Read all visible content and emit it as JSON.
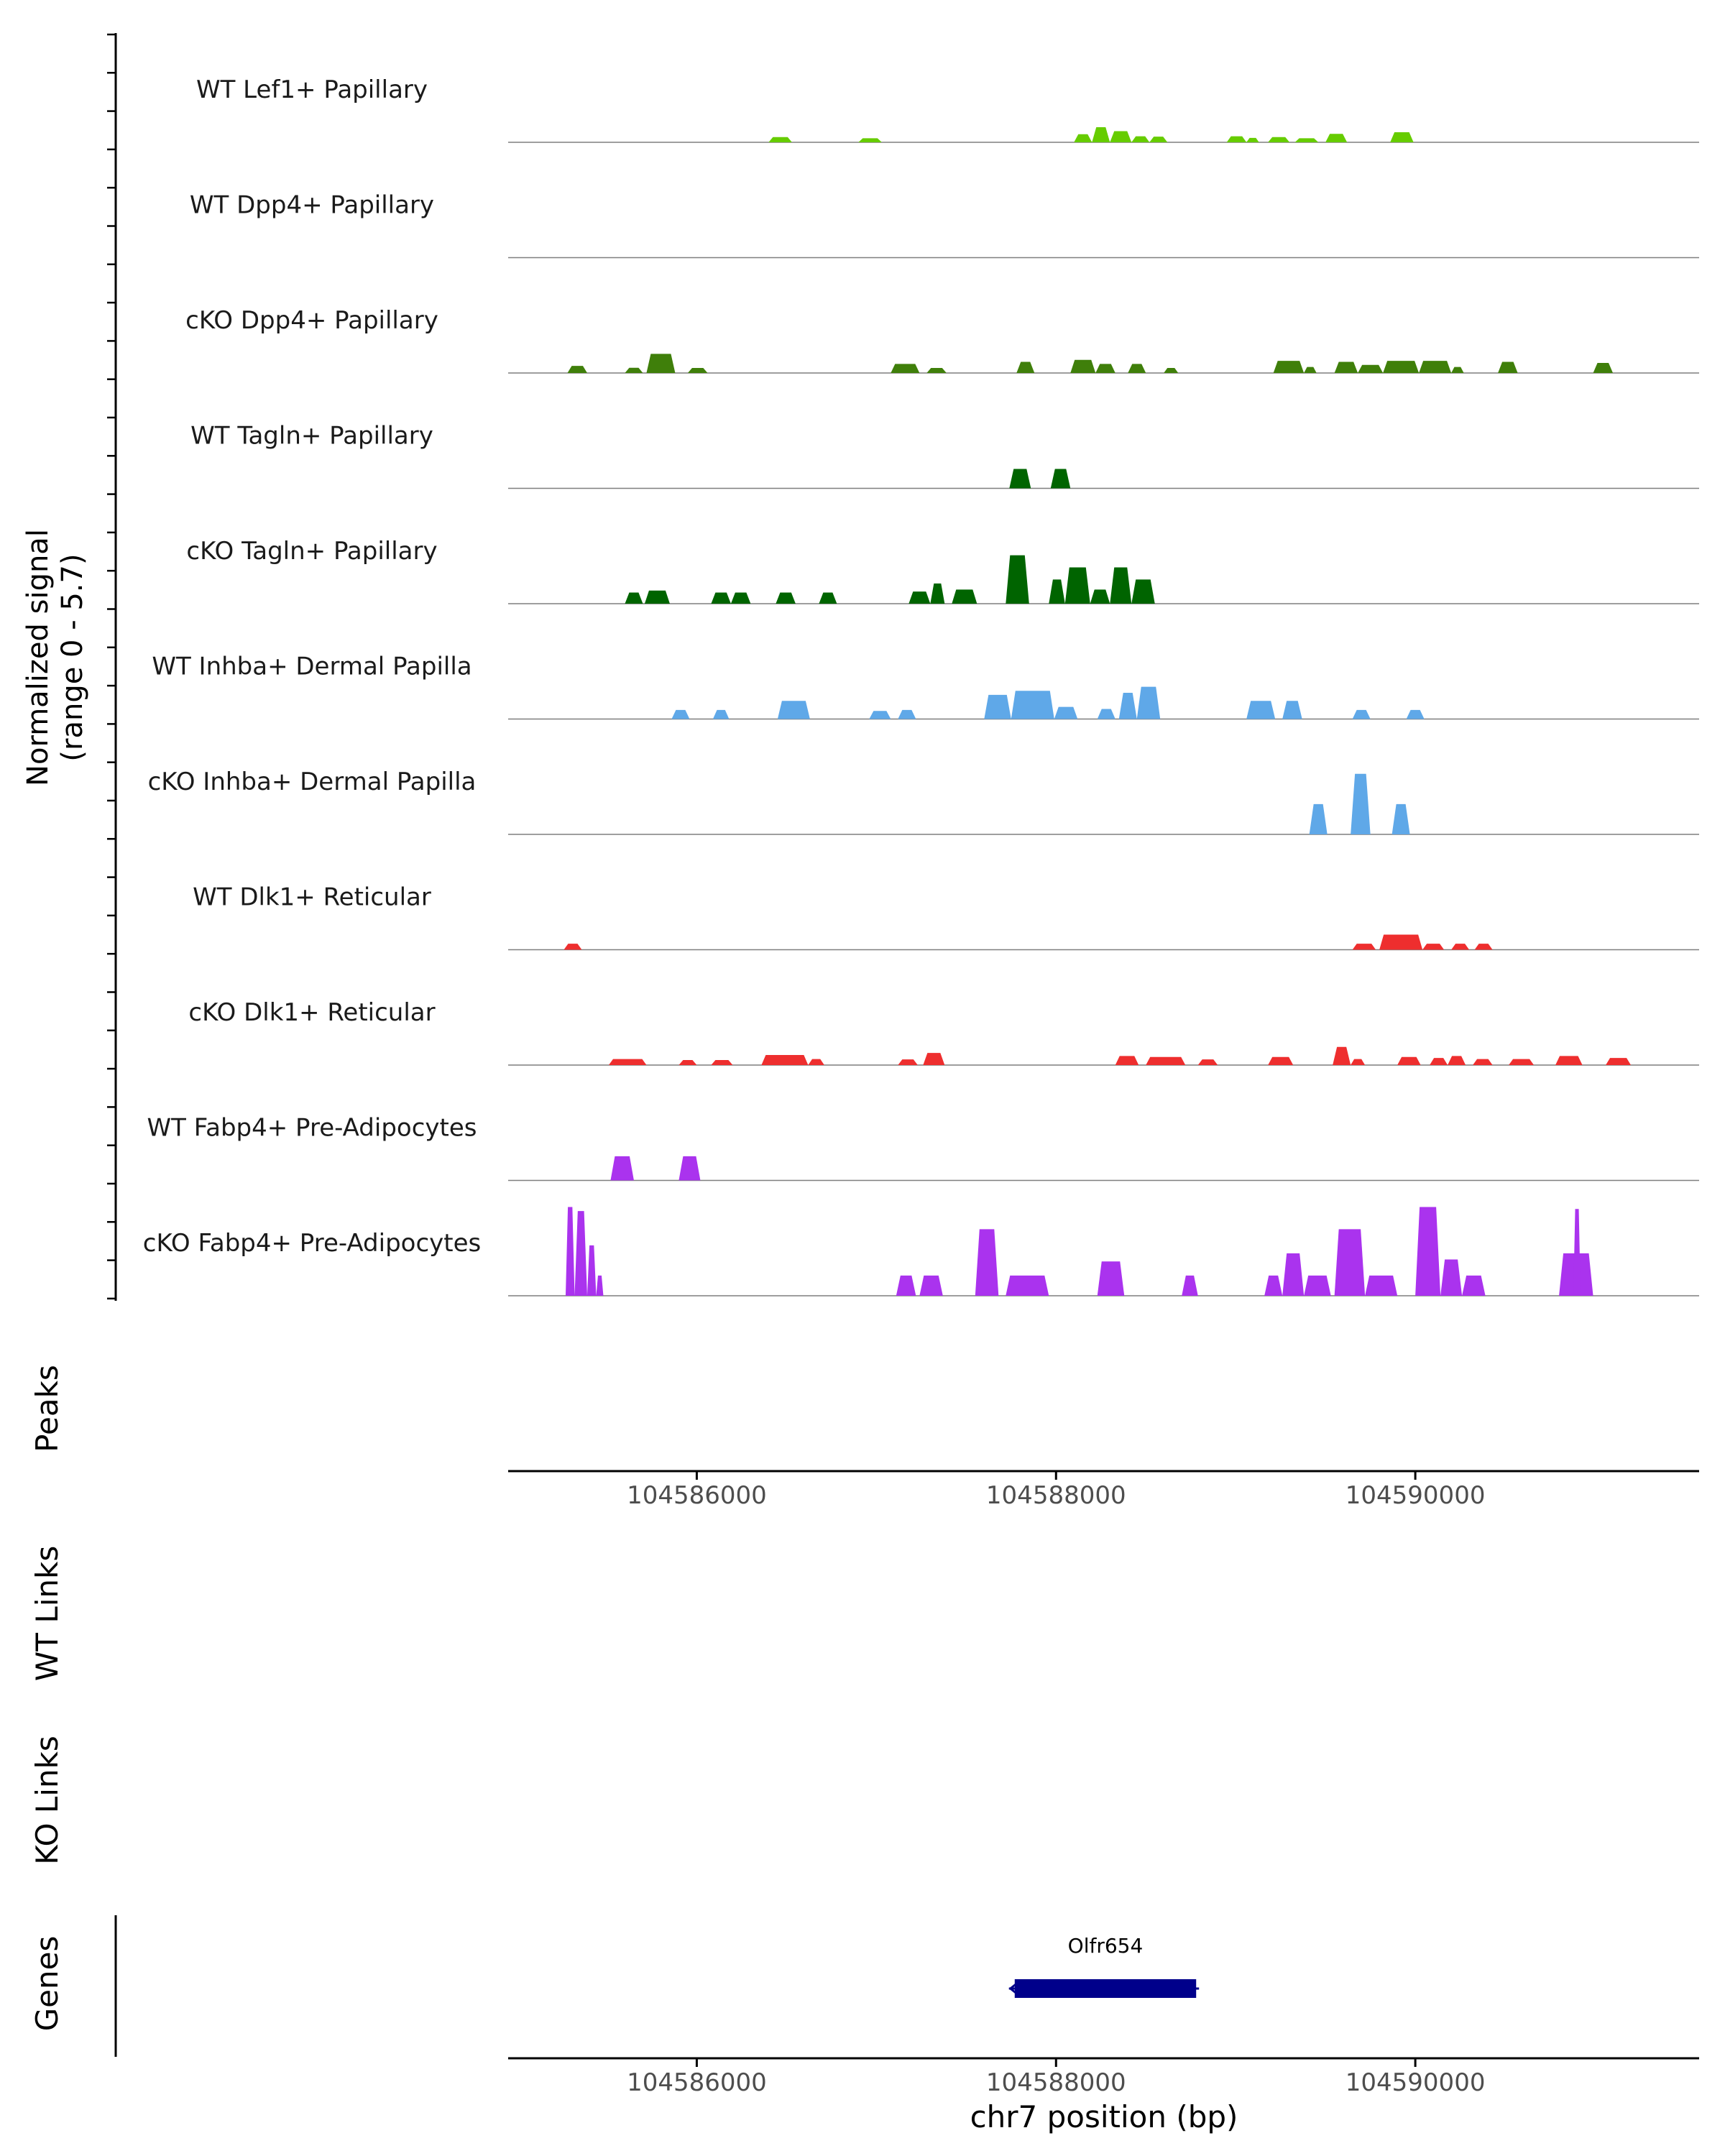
{
  "chart_data": {
    "type": "area",
    "colors": {
      "Lef1": "#66CC00",
      "PapillaryLight": "#3F7F0A",
      "PapillaryDark": "#006400",
      "Inhba": "#5FA8E8",
      "Dlk1": "#EE2E2E",
      "Fabp4": "#AA33EE",
      "Gene": "#00008B",
      "Baseline": "#7f7f7f",
      "Axis": "#000000",
      "Tick": "#4D4D4D"
    },
    "ylabel_signal": [
      "Normalized signal",
      "(range 0 - 5.7)"
    ],
    "y_range": [
      0,
      5.7
    ],
    "xlim": [
      104584950,
      104591580
    ],
    "x_ticks": [
      104586000,
      104588000,
      104590000
    ],
    "x_tick_labels": [
      "104586000",
      "104588000",
      "104590000"
    ],
    "xlabel": "chr7 position (bp)",
    "panel_labels": {
      "peaks": "Peaks",
      "wt_links": "WT Links",
      "ko_links": "KO Links",
      "genes": "Genes"
    },
    "genes": [
      {
        "name": "Olfr654",
        "start": 104587770,
        "end": 104588780,
        "strand": "-"
      }
    ],
    "tracks": [
      {
        "name": "WT Lef1+ Papillary",
        "color": "Lef1",
        "peaks": [
          [
            104586400,
            104586530,
            0.26
          ],
          [
            104586900,
            104587030,
            0.2
          ],
          [
            104588100,
            104588200,
            0.4
          ],
          [
            104588200,
            104588300,
            0.75
          ],
          [
            104588300,
            104588420,
            0.55
          ],
          [
            104588420,
            104588520,
            0.3
          ],
          [
            104588520,
            104588620,
            0.28
          ],
          [
            104588950,
            104589060,
            0.3
          ],
          [
            104589060,
            104589130,
            0.22
          ],
          [
            104589180,
            104589300,
            0.26
          ],
          [
            104589330,
            104589460,
            0.2
          ],
          [
            104589500,
            104589620,
            0.42
          ],
          [
            104589860,
            104589990,
            0.5
          ]
        ]
      },
      {
        "name": "WT Dpp4+ Papillary",
        "color": "Lef1",
        "peaks": []
      },
      {
        "name": "cKO Dpp4+ Papillary",
        "color": "PapillaryLight",
        "peaks": [
          [
            104585280,
            104585390,
            0.35
          ],
          [
            104585600,
            104585700,
            0.26
          ],
          [
            104585720,
            104585880,
            0.95
          ],
          [
            104585950,
            104586060,
            0.25
          ],
          [
            104587080,
            104587240,
            0.45
          ],
          [
            104587280,
            104587390,
            0.25
          ],
          [
            104587780,
            104587880,
            0.55
          ],
          [
            104588080,
            104588220,
            0.65
          ],
          [
            104588220,
            104588330,
            0.45
          ],
          [
            104588400,
            104588500,
            0.45
          ],
          [
            104588600,
            104588680,
            0.25
          ],
          [
            104589210,
            104589380,
            0.6
          ],
          [
            104589380,
            104589450,
            0.3
          ],
          [
            104589550,
            104589680,
            0.55
          ],
          [
            104589680,
            104589820,
            0.4
          ],
          [
            104589820,
            104590020,
            0.6
          ],
          [
            104590020,
            104590200,
            0.6
          ],
          [
            104590200,
            104590270,
            0.3
          ],
          [
            104590460,
            104590570,
            0.55
          ],
          [
            104590990,
            104591100,
            0.5
          ]
        ]
      },
      {
        "name": "WT Tagln+ Papillary",
        "color": "PapillaryDark",
        "peaks": [
          [
            104587740,
            104587860,
            0.96
          ],
          [
            104587970,
            104588080,
            0.96
          ]
        ]
      },
      {
        "name": "cKO Tagln+ Papillary",
        "color": "PapillaryDark",
        "peaks": [
          [
            104585600,
            104585700,
            0.55
          ],
          [
            104585710,
            104585850,
            0.65
          ],
          [
            104586080,
            104586190,
            0.55
          ],
          [
            104586190,
            104586300,
            0.55
          ],
          [
            104586440,
            104586550,
            0.55
          ],
          [
            104586680,
            104586780,
            0.55
          ],
          [
            104587180,
            104587300,
            0.6
          ],
          [
            104587300,
            104587380,
            1.0
          ],
          [
            104587420,
            104587560,
            0.7
          ],
          [
            104587720,
            104587850,
            2.4
          ],
          [
            104587960,
            104588050,
            1.2
          ],
          [
            104588050,
            104588190,
            1.8
          ],
          [
            104588190,
            104588300,
            0.7
          ],
          [
            104588300,
            104588420,
            1.8
          ],
          [
            104588420,
            104588550,
            1.2
          ]
        ]
      },
      {
        "name": "WT Inhba+ Dermal Papilla",
        "color": "Inhba",
        "peaks": [
          [
            104585860,
            104585960,
            0.45
          ],
          [
            104586090,
            104586180,
            0.45
          ],
          [
            104586450,
            104586630,
            0.9
          ],
          [
            104586960,
            104587080,
            0.4
          ],
          [
            104587120,
            104587220,
            0.45
          ],
          [
            104587600,
            104587750,
            1.2
          ],
          [
            104587750,
            104587990,
            1.4
          ],
          [
            104587990,
            104588120,
            0.6
          ],
          [
            104588230,
            104588330,
            0.5
          ],
          [
            104588350,
            104588450,
            1.3
          ],
          [
            104588450,
            104588580,
            1.6
          ],
          [
            104589060,
            104589220,
            0.9
          ],
          [
            104589260,
            104589370,
            0.9
          ],
          [
            104589650,
            104589750,
            0.45
          ],
          [
            104589950,
            104590050,
            0.45
          ]
        ]
      },
      {
        "name": "cKO Inhba+ Dermal Papilla",
        "color": "Inhba",
        "peaks": [
          [
            104589410,
            104589510,
            1.5
          ],
          [
            104589640,
            104589750,
            3.0
          ],
          [
            104589870,
            104589970,
            1.5
          ]
        ]
      },
      {
        "name": "WT Dlk1+ Reticular",
        "color": "Dlk1",
        "peaks": [
          [
            104585260,
            104585360,
            0.3
          ],
          [
            104589650,
            104589780,
            0.3
          ],
          [
            104589800,
            104590040,
            0.75
          ],
          [
            104590040,
            104590160,
            0.3
          ],
          [
            104590200,
            104590300,
            0.3
          ],
          [
            104590330,
            104590430,
            0.3
          ]
        ]
      },
      {
        "name": "cKO Dlk1+ Reticular",
        "color": "Dlk1",
        "peaks": [
          [
            104585510,
            104585720,
            0.3
          ],
          [
            104585900,
            104586000,
            0.25
          ],
          [
            104586080,
            104586200,
            0.25
          ],
          [
            104586360,
            104586620,
            0.5
          ],
          [
            104586620,
            104586710,
            0.3
          ],
          [
            104587120,
            104587230,
            0.28
          ],
          [
            104587260,
            104587380,
            0.6
          ],
          [
            104588330,
            104588460,
            0.45
          ],
          [
            104588500,
            104588720,
            0.4
          ],
          [
            104588790,
            104588900,
            0.28
          ],
          [
            104589180,
            104589320,
            0.4
          ],
          [
            104589540,
            104589640,
            0.9
          ],
          [
            104589640,
            104589720,
            0.3
          ],
          [
            104589900,
            104590030,
            0.4
          ],
          [
            104590080,
            104590180,
            0.35
          ],
          [
            104590180,
            104590280,
            0.45
          ],
          [
            104590320,
            104590430,
            0.3
          ],
          [
            104590520,
            104590660,
            0.3
          ],
          [
            104590780,
            104590930,
            0.45
          ],
          [
            104591060,
            104591200,
            0.35
          ]
        ]
      },
      {
        "name": "WT Fabp4+ Pre-Adipocytes",
        "color": "Fabp4",
        "peaks": [
          [
            104585520,
            104585650,
            1.2
          ],
          [
            104585900,
            104586020,
            1.2
          ]
        ]
      },
      {
        "name": "cKO Fabp4+ Pre-Adipocytes",
        "color": "Fabp4",
        "peaks": [
          [
            104585270,
            104585320,
            4.4
          ],
          [
            104585320,
            104585390,
            4.2
          ],
          [
            104585390,
            104585440,
            2.5
          ],
          [
            104585440,
            104585480,
            1.0
          ],
          [
            104587110,
            104587220,
            1.0
          ],
          [
            104587240,
            104587370,
            1.0
          ],
          [
            104587550,
            104587680,
            3.3
          ],
          [
            104587720,
            104587960,
            1.0
          ],
          [
            104588230,
            104588380,
            1.7
          ],
          [
            104588700,
            104588790,
            1.0
          ],
          [
            104589160,
            104589260,
            1.0
          ],
          [
            104589260,
            104589380,
            2.1
          ],
          [
            104589380,
            104589530,
            1.0
          ],
          [
            104589550,
            104589720,
            3.3
          ],
          [
            104589720,
            104589900,
            1.0
          ],
          [
            104590000,
            104590140,
            4.4
          ],
          [
            104590140,
            104590260,
            1.8
          ],
          [
            104590260,
            104590390,
            1.0
          ],
          [
            104590800,
            104590990,
            2.1
          ],
          [
            104590880,
            104590920,
            4.3
          ]
        ]
      }
    ]
  }
}
